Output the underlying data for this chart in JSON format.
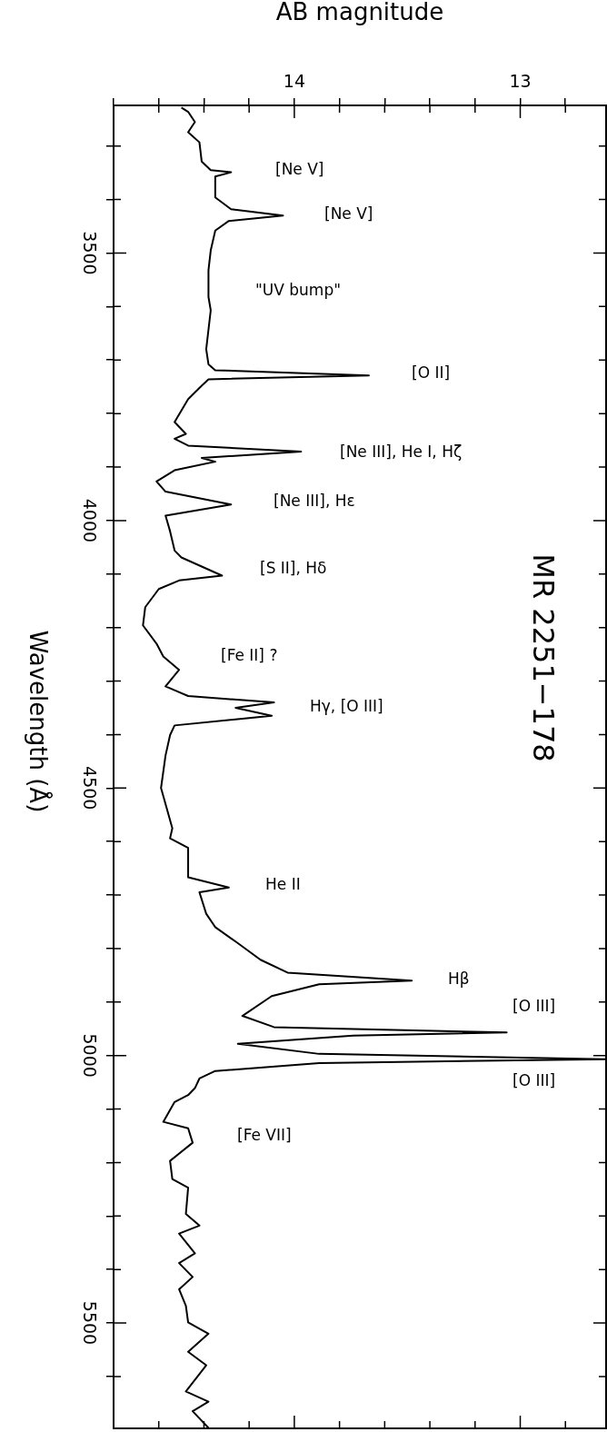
{
  "chart_data": {
    "type": "line",
    "orientation": "horizontal",
    "title": "MR 2251−178",
    "xlabel": "AB magnitude",
    "ylabel": "Wavelength (Å)",
    "xlim": [
      14.8,
      12.62
    ],
    "ylim": [
      5697,
      3224
    ],
    "xticks": [
      {
        "value": 14.8,
        "label": null
      },
      {
        "value": 14.6,
        "label": null
      },
      {
        "value": 14.4,
        "label": null
      },
      {
        "value": 14.2,
        "label": null
      },
      14,
      {
        "value": 13.8,
        "label": null
      },
      {
        "value": 13.6,
        "label": null
      },
      {
        "value": 13.4,
        "label": null
      },
      {
        "value": 13.2,
        "label": null
      },
      13,
      {
        "value": 12.8,
        "label": null
      }
    ],
    "yticks": [
      {
        "value": 3300,
        "label": null
      },
      {
        "value": 3400,
        "label": null
      },
      3500,
      {
        "value": 3600,
        "label": null
      },
      {
        "value": 3700,
        "label": null
      },
      {
        "value": 3800,
        "label": null
      },
      {
        "value": 3900,
        "label": null
      },
      4000,
      {
        "value": 4100,
        "label": null
      },
      {
        "value": 4200,
        "label": null
      },
      {
        "value": 4300,
        "label": null
      },
      {
        "value": 4400,
        "label": null
      },
      4500,
      {
        "value": 4600,
        "label": null
      },
      {
        "value": 4700,
        "label": null
      },
      {
        "value": 4800,
        "label": null
      },
      {
        "value": 4900,
        "label": null
      },
      5000,
      {
        "value": 5100,
        "label": null
      },
      {
        "value": 5200,
        "label": null
      },
      {
        "value": 5300,
        "label": null
      },
      {
        "value": 5400,
        "label": null
      },
      5500,
      {
        "value": 5600,
        "label": null
      }
    ],
    "grid": false,
    "legend": false,
    "marker": "none",
    "line_style": "solid",
    "series": [
      {
        "color": "#000000",
        "x": [
          3228,
          3236,
          3255,
          3274,
          3293,
          3329,
          3345,
          3349,
          3357,
          3396,
          3418,
          3430,
          3440,
          3458,
          3495,
          3532,
          3582,
          3607,
          3680,
          3708,
          3719,
          3729,
          3736,
          3748,
          3773,
          3816,
          3838,
          3847,
          3860,
          3871,
          3883,
          3890,
          3906,
          3927,
          3946,
          3970,
          3991,
          4020,
          4056,
          4069,
          4103,
          4112,
          4128,
          4162,
          4196,
          4230,
          4254,
          4279,
          4310,
          4328,
          4340,
          4350,
          4365,
          4383,
          4401,
          4439,
          4500,
          4575,
          4594,
          4612,
          4667,
          4686,
          4695,
          4735,
          4760,
          4790,
          4821,
          4845,
          4860,
          4867,
          4889,
          4926,
          4947,
          4957,
          4963,
          4978,
          4997,
          5007,
          5014,
          5029,
          5043,
          5061,
          5074,
          5087,
          5124,
          5136,
          5163,
          5197,
          5231,
          5247,
          5296,
          5318,
          5333,
          5370,
          5388,
          5414,
          5437,
          5468,
          5499,
          5520,
          5554,
          5579,
          5628,
          5647,
          5665,
          5696
        ],
        "values": [
          14.5,
          14.47,
          14.44,
          14.47,
          14.42,
          14.41,
          14.37,
          14.28,
          14.35,
          14.35,
          14.28,
          14.05,
          14.29,
          14.35,
          14.37,
          14.38,
          14.38,
          14.37,
          14.39,
          14.38,
          14.35,
          13.67,
          14.38,
          14.41,
          14.47,
          14.53,
          14.48,
          14.53,
          14.47,
          13.97,
          14.41,
          14.35,
          14.53,
          14.61,
          14.57,
          14.28,
          14.57,
          14.55,
          14.53,
          14.5,
          14.32,
          14.51,
          14.6,
          14.66,
          14.67,
          14.61,
          14.58,
          14.51,
          14.57,
          14.47,
          14.09,
          14.26,
          14.1,
          14.53,
          14.55,
          14.57,
          14.59,
          14.54,
          14.55,
          14.47,
          14.47,
          14.29,
          14.42,
          14.39,
          14.35,
          14.25,
          14.15,
          14.03,
          13.48,
          13.89,
          14.1,
          14.23,
          14.09,
          13.06,
          13.74,
          14.25,
          13.89,
          12.62,
          13.89,
          14.35,
          14.42,
          14.44,
          14.47,
          14.53,
          14.58,
          14.47,
          14.45,
          14.55,
          14.54,
          14.47,
          14.48,
          14.42,
          14.51,
          14.44,
          14.51,
          14.45,
          14.51,
          14.48,
          14.47,
          14.38,
          14.47,
          14.39,
          14.48,
          14.38,
          14.45,
          14.38
        ]
      }
    ],
    "annotations": [
      "[Ne V]",
      "[Ne V]",
      "\"UV bump\"",
      "[O II]",
      "[Ne III], He I, Hζ",
      "[Ne III], Hε",
      "[S II], Hδ",
      "[Fe II] ?",
      "Hγ, [O III]",
      "He II",
      "Hβ",
      "[O III]",
      "[O III]",
      "[Fe VII]"
    ]
  }
}
